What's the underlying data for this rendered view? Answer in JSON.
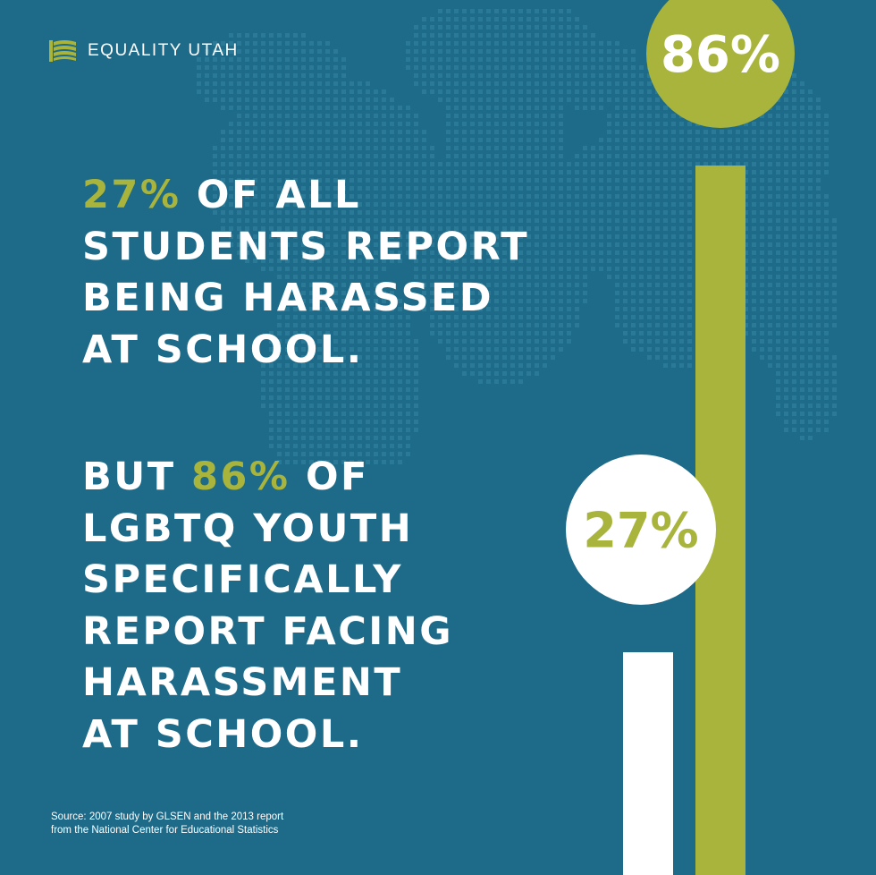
{
  "brand": {
    "name": "EQUALITY UTAH",
    "logo_icon": "book-flag-icon",
    "logo_color": "#a8b43c"
  },
  "headline_1": {
    "highlight": "27%",
    "lines": [
      "OF ALL",
      "STUDENTS REPORT",
      "BEING HARASSED",
      "AT SCHOOL."
    ]
  },
  "headline_2": {
    "prefix": "BUT",
    "highlight": "86%",
    "suffix": "OF",
    "lines": [
      "LGBTQ YOUTH",
      "SPECIFICALLY",
      "REPORT FACING",
      "HARASSMENT",
      "AT SCHOOL."
    ]
  },
  "source": {
    "line_1": "Source: 2007 study by GLSEN and the 2013 report",
    "line_2": "from the National Center for Educational Statistics"
  },
  "colors": {
    "background": "#1d6a89",
    "accent": "#a8b43c",
    "white": "#ffffff",
    "dots": "#2a7a97"
  },
  "chart_data": {
    "type": "bar",
    "categories": [
      "All students",
      "LGBTQ youth"
    ],
    "values": [
      27,
      86
    ],
    "value_labels": [
      "27%",
      "86%"
    ],
    "bar_colors": [
      "#ffffff",
      "#a8b43c"
    ],
    "label_circle_colors": [
      "#ffffff",
      "#a8b43c"
    ],
    "label_text_colors": [
      "#a8b43c",
      "#ffffff"
    ],
    "ylim": [
      0,
      100
    ],
    "grid": false,
    "legend": "none"
  }
}
